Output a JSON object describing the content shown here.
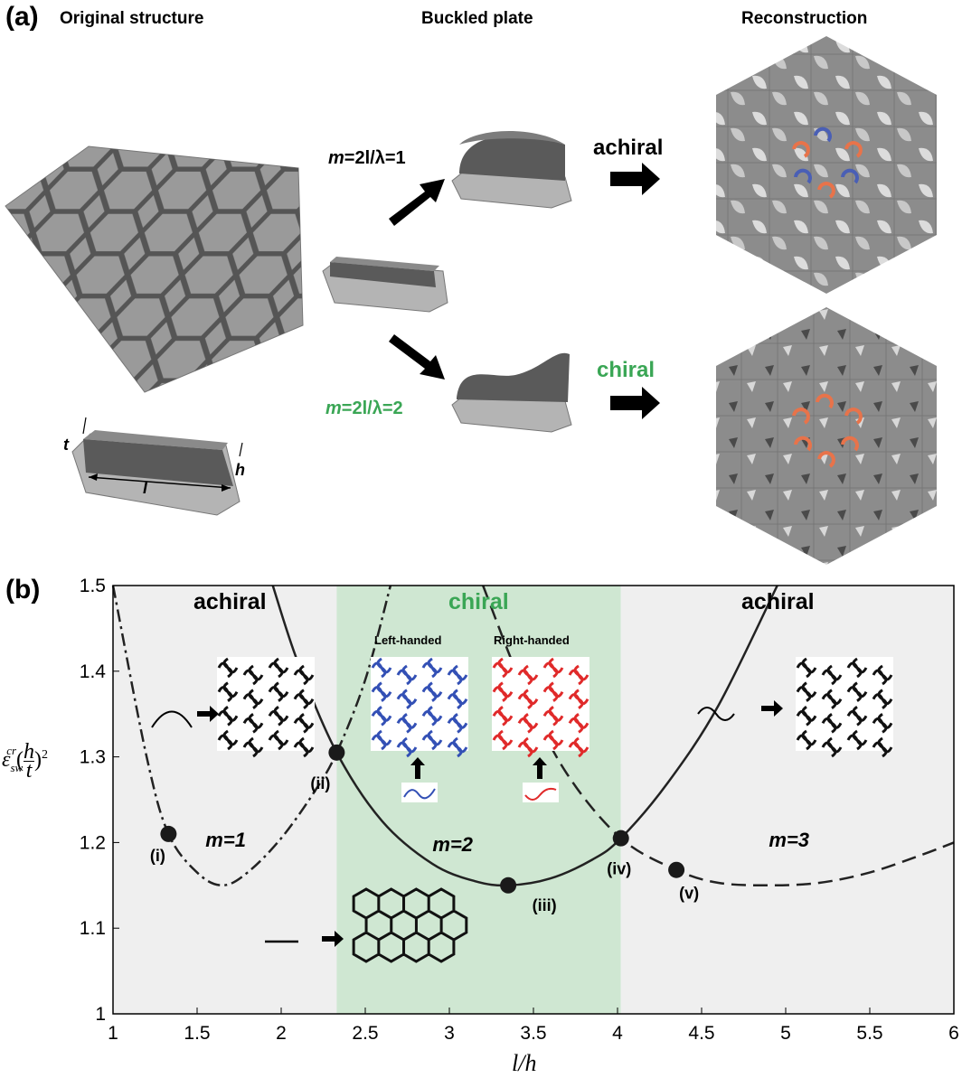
{
  "panel_a": {
    "label": "(a)",
    "titles": {
      "original": "Original structure",
      "buckled": "Buckled plate",
      "reconstruction": "Reconstruction"
    },
    "mode1": {
      "m": "m",
      "eq": "=2l/λ=1",
      "type": "achiral"
    },
    "mode2": {
      "m": "m",
      "eq": "=2l/λ=2",
      "type": "chiral"
    },
    "dims": {
      "t": "t",
      "h": "h",
      "l": "l"
    },
    "colors": {
      "plate": "#8e8e8e",
      "plate_dark": "#5d5d5d",
      "chiral_green": "#3aa655",
      "orange_ring": "#e8734a",
      "blue_ring": "#4a5fb5"
    }
  },
  "chart_data": {
    "type": "line",
    "panel_label": "(b)",
    "xlabel": "l/h",
    "ylabel_main": "ε",
    "ylabel_sub": "sw",
    "ylabel_sup": "cr",
    "ylabel_frac_num": "h",
    "ylabel_frac_den": "t",
    "ylabel_exp": "2",
    "xlim": [
      1,
      6
    ],
    "ylim": [
      1,
      1.5
    ],
    "xticks": [
      "1",
      "1.5",
      "2",
      "2.5",
      "3",
      "3.5",
      "4",
      "4.5",
      "5",
      "5.5",
      "6"
    ],
    "yticks": [
      "1",
      "1.1",
      "1.2",
      "1.3",
      "1.4",
      "1.5"
    ],
    "regions": [
      {
        "label": "achiral",
        "x": [
          1,
          2.33
        ]
      },
      {
        "label": "chiral",
        "x": [
          2.33,
          4.02
        ]
      },
      {
        "label": "achiral",
        "x": [
          4.02,
          6
        ]
      }
    ],
    "region_colors": {
      "achiral": "#efefef",
      "chiral": "#cfe7d2"
    },
    "series": [
      {
        "name": "m=1",
        "style": "dashdot",
        "x": [
          1.0,
          1.2,
          1.33,
          1.5,
          1.65,
          1.8,
          2.0,
          2.2,
          2.33,
          2.5,
          2.65
        ],
        "y": [
          1.5,
          1.3,
          1.21,
          1.165,
          1.15,
          1.165,
          1.205,
          1.26,
          1.305,
          1.39,
          1.5
        ]
      },
      {
        "name": "m=2",
        "style": "solid",
        "x": [
          1.95,
          2.1,
          2.33,
          2.6,
          2.9,
          3.15,
          3.35,
          3.6,
          3.85,
          4.02,
          4.3,
          4.6,
          4.95
        ],
        "y": [
          1.5,
          1.41,
          1.305,
          1.225,
          1.175,
          1.155,
          1.15,
          1.158,
          1.18,
          1.205,
          1.27,
          1.36,
          1.5
        ]
      },
      {
        "name": "m=3",
        "style": "dashed",
        "x": [
          3.2,
          3.45,
          3.7,
          4.02,
          4.35,
          4.6,
          4.9,
          5.2,
          5.5,
          5.8,
          6.0
        ],
        "y": [
          1.5,
          1.375,
          1.28,
          1.205,
          1.168,
          1.153,
          1.15,
          1.153,
          1.165,
          1.185,
          1.2
        ]
      }
    ],
    "points": [
      {
        "label": "(i)",
        "x": 1.33,
        "y": 1.21
      },
      {
        "label": "(ii)",
        "x": 2.33,
        "y": 1.305
      },
      {
        "label": "(iii)",
        "x": 3.35,
        "y": 1.15
      },
      {
        "label": "(iv)",
        "x": 4.02,
        "y": 1.205
      },
      {
        "label": "(v)",
        "x": 4.35,
        "y": 1.168
      }
    ],
    "mode_labels": [
      {
        "text": "m=1",
        "x": 1.55,
        "y": 1.195
      },
      {
        "text": "m=2",
        "x": 2.9,
        "y": 1.19
      },
      {
        "text": "m=3",
        "x": 4.9,
        "y": 1.195
      }
    ],
    "inset_titles": {
      "left": "Left-handed",
      "right": "Right-handed"
    }
  }
}
